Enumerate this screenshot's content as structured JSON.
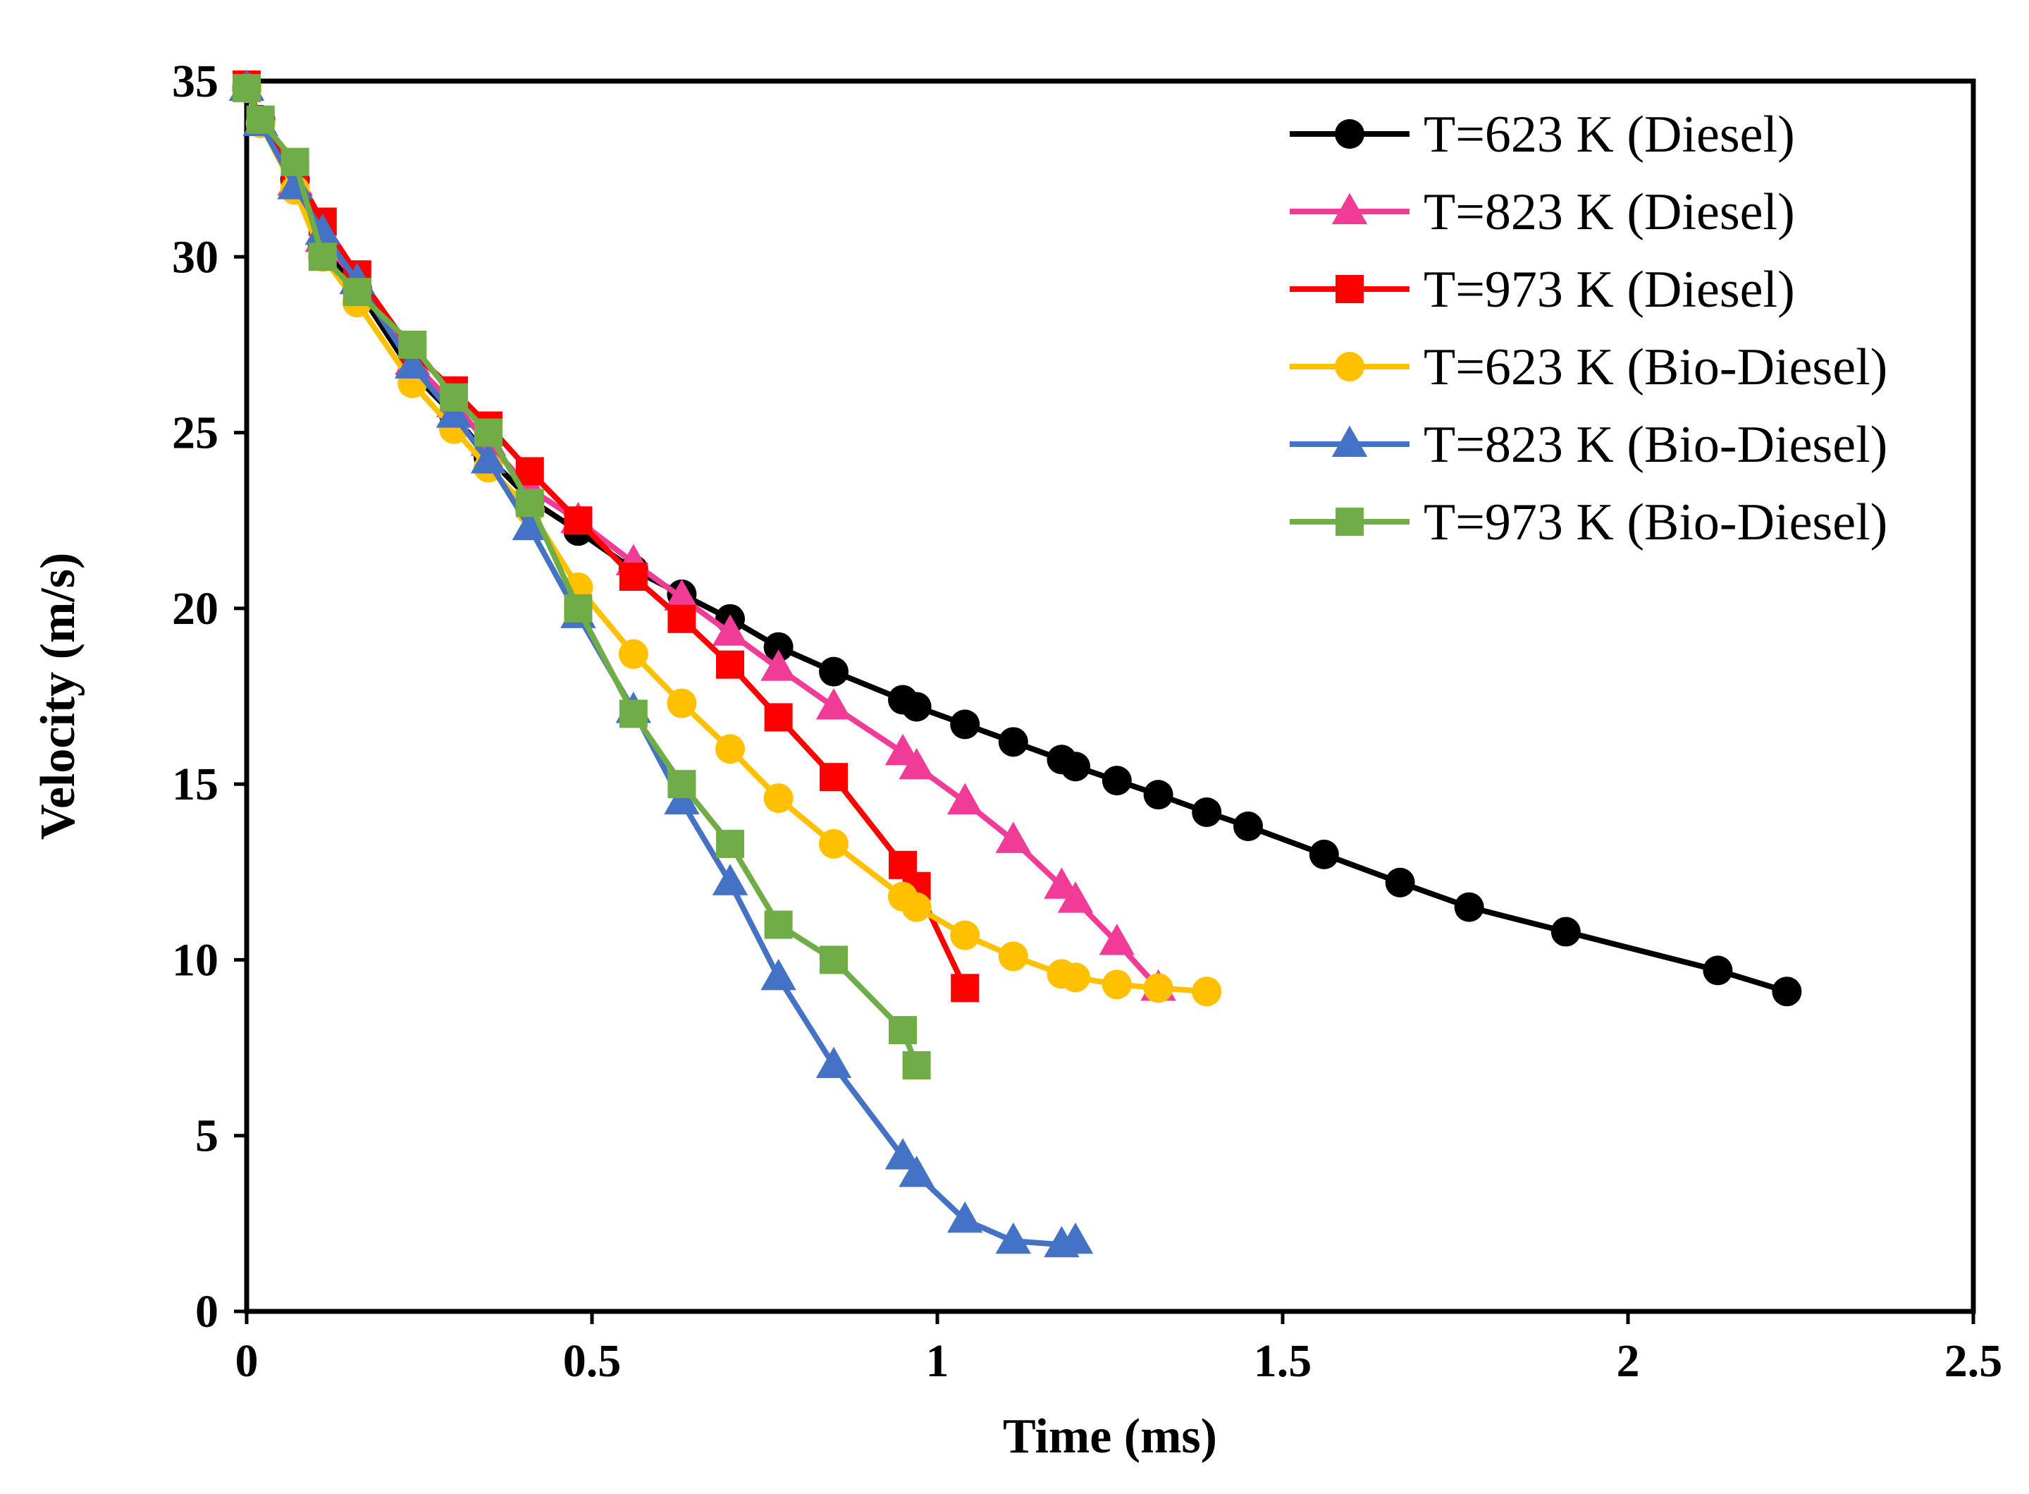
{
  "chart_data": {
    "type": "line",
    "title": "",
    "xlabel": "Time (ms)",
    "ylabel": "Velocity (m/s)",
    "xlim": [
      0,
      2.5
    ],
    "ylim": [
      0,
      35
    ],
    "xticks": [
      0,
      0.5,
      1,
      1.5,
      2,
      2.5
    ],
    "xtick_labels": [
      "0",
      "0.5",
      "1",
      "1.5",
      "2",
      "2.5"
    ],
    "yticks": [
      0,
      5,
      10,
      15,
      20,
      25,
      30,
      35
    ],
    "ytick_labels": [
      "0",
      "5",
      "10",
      "15",
      "20",
      "25",
      "30",
      "35"
    ],
    "grid": false,
    "legend_position": "top-right",
    "series": [
      {
        "name": "T=623 K (Diesel)",
        "color": "#000000",
        "marker": "circle",
        "x": [
          0,
          0.02,
          0.07,
          0.11,
          0.16,
          0.24,
          0.3,
          0.35,
          0.41,
          0.48,
          0.56,
          0.63,
          0.7,
          0.77,
          0.85,
          0.95,
          0.97,
          1.04,
          1.11,
          1.18,
          1.2,
          1.26,
          1.32,
          1.39,
          1.45,
          1.56,
          1.67,
          1.77,
          1.91,
          2.13,
          2.23
        ],
        "y": [
          34.8,
          33.9,
          32.2,
          30.3,
          29.1,
          26.7,
          25.5,
          24.3,
          23.1,
          22.2,
          21.1,
          20.4,
          19.7,
          18.9,
          18.2,
          17.4,
          17.2,
          16.7,
          16.2,
          15.7,
          15.5,
          15.1,
          14.7,
          14.2,
          13.8,
          13.0,
          12.2,
          11.5,
          10.8,
          9.7,
          9.1
        ]
      },
      {
        "name": "T=823 K (Diesel)",
        "color": "#F03C96",
        "marker": "triangle",
        "x": [
          0,
          0.02,
          0.07,
          0.11,
          0.16,
          0.24,
          0.3,
          0.35,
          0.41,
          0.48,
          0.56,
          0.63,
          0.7,
          0.77,
          0.85,
          0.95,
          0.97,
          1.04,
          1.11,
          1.18,
          1.2,
          1.26,
          1.32
        ],
        "y": [
          34.8,
          33.8,
          32.1,
          30.5,
          29.3,
          27.0,
          25.8,
          24.7,
          23.4,
          22.5,
          21.3,
          20.3,
          19.3,
          18.3,
          17.2,
          15.9,
          15.5,
          14.5,
          13.4,
          12.1,
          11.7,
          10.5,
          9.2
        ]
      },
      {
        "name": "T=973 K (Diesel)",
        "color": "#FF0000",
        "marker": "square",
        "x": [
          0,
          0.02,
          0.07,
          0.11,
          0.16,
          0.24,
          0.3,
          0.35,
          0.41,
          0.48,
          0.56,
          0.63,
          0.7,
          0.77,
          0.85,
          0.95,
          0.97,
          1.04
        ],
        "y": [
          34.9,
          33.9,
          32.4,
          31.0,
          29.5,
          27.3,
          26.2,
          25.2,
          23.9,
          22.5,
          20.9,
          19.7,
          18.4,
          16.9,
          15.2,
          12.7,
          12.1,
          9.2
        ]
      },
      {
        "name": "T=623 K (Bio-Diesel)",
        "color": "#FFC000",
        "marker": "circle",
        "x": [
          0,
          0.02,
          0.07,
          0.11,
          0.16,
          0.24,
          0.3,
          0.35,
          0.41,
          0.48,
          0.56,
          0.63,
          0.7,
          0.77,
          0.85,
          0.95,
          0.97,
          1.04,
          1.11,
          1.18,
          1.2,
          1.26,
          1.32,
          1.39
        ],
        "y": [
          34.8,
          33.8,
          31.9,
          30.0,
          28.7,
          26.4,
          25.1,
          24.0,
          22.8,
          20.6,
          18.7,
          17.3,
          16.0,
          14.6,
          13.3,
          11.8,
          11.5,
          10.7,
          10.1,
          9.6,
          9.5,
          9.3,
          9.2,
          9.1
        ]
      },
      {
        "name": "T=823 K (Bio-Diesel)",
        "color": "#4472C4",
        "marker": "triangle",
        "x": [
          0,
          0.02,
          0.07,
          0.11,
          0.16,
          0.24,
          0.3,
          0.35,
          0.41,
          0.48,
          0.56,
          0.63,
          0.7,
          0.77,
          0.85,
          0.95,
          0.97,
          1.04,
          1.11,
          1.18,
          1.2
        ],
        "y": [
          34.8,
          33.8,
          32.0,
          30.7,
          29.3,
          26.9,
          25.5,
          24.2,
          22.3,
          19.8,
          17.1,
          14.5,
          12.2,
          9.5,
          7.0,
          4.4,
          3.9,
          2.6,
          2.0,
          1.9,
          2.0
        ]
      },
      {
        "name": "T=973 K (Bio-Diesel)",
        "color": "#70AD47",
        "marker": "square",
        "x": [
          0,
          0.02,
          0.07,
          0.11,
          0.16,
          0.24,
          0.3,
          0.35,
          0.41,
          0.48,
          0.56,
          0.63,
          0.7,
          0.77,
          0.85,
          0.95,
          0.97
        ],
        "y": [
          34.8,
          33.9,
          32.7,
          30.0,
          29.0,
          27.5,
          26.0,
          25.0,
          23.0,
          20.0,
          17.0,
          15.0,
          13.3,
          11.0,
          10.0,
          8.0,
          7.0
        ]
      }
    ]
  }
}
